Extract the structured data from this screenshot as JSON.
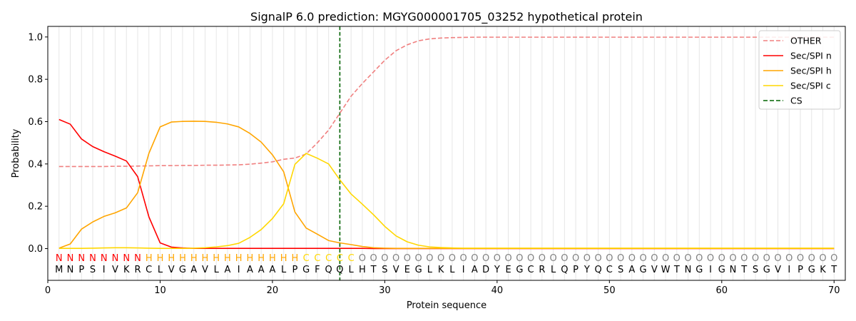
{
  "chart_data": {
    "type": "line",
    "title": "SignalP 6.0 prediction: MGYG000001705_03252 hypothetical protein",
    "xlabel": "Protein sequence",
    "ylabel": "Probability",
    "xlim": [
      0,
      71
    ],
    "ylim": [
      -0.15,
      1.05
    ],
    "x_ticks": [
      0,
      10,
      20,
      30,
      40,
      50,
      60,
      70
    ],
    "y_ticks": [
      0.0,
      0.2,
      0.4,
      0.6,
      0.8,
      1.0
    ],
    "x_tick_labels": [
      "0",
      "10",
      "20",
      "30",
      "40",
      "50",
      "60",
      "70"
    ],
    "y_tick_labels": [
      "0.0",
      "0.2",
      "0.4",
      "0.6",
      "0.8",
      "1.0"
    ],
    "grid": "vertical lines at each residue",
    "legend_position": "top-right",
    "sequence": "MNPSIVKRCLVGAVLAIAAALPGFQQLHTSVEGLKLIADYEGCRLQPYQCSAGVWTNGIGNTSGVIPGKT",
    "region_labels": "NNNNNNNNHHHHHHHHHHHHHHCCCCCOOOOOOOOOOOOOOOOOOOOOOOOOOOOOOOOOOOOOOOOOOOO",
    "region_colors": {
      "N": "#ff0000",
      "H": "#ffa500",
      "C": "#ffd700",
      "O": "#808080"
    },
    "cleavage_site": 26,
    "series": [
      {
        "name": "OTHER",
        "color": "#f08080",
        "style": "dashed",
        "values": [
          0.388,
          0.388,
          0.388,
          0.388,
          0.388,
          0.389,
          0.389,
          0.39,
          0.391,
          0.392,
          0.392,
          0.393,
          0.393,
          0.394,
          0.394,
          0.395,
          0.396,
          0.399,
          0.404,
          0.41,
          0.422,
          0.428,
          0.447,
          0.5,
          0.56,
          0.64,
          0.72,
          0.78,
          0.835,
          0.89,
          0.935,
          0.963,
          0.982,
          0.991,
          0.995,
          0.997,
          0.998,
          0.999,
          0.999,
          0.999,
          0.999,
          0.999,
          0.999,
          0.999,
          0.999,
          0.999,
          0.999,
          0.999,
          0.999,
          0.999,
          0.999,
          0.999,
          0.999,
          0.999,
          0.999,
          0.999,
          0.999,
          0.999,
          0.999,
          0.999,
          0.999,
          0.999,
          0.999,
          0.999,
          0.999,
          0.999,
          0.999,
          0.999,
          0.999,
          0.999
        ]
      },
      {
        "name": "Sec/SPI n",
        "color": "#ff0000",
        "style": "solid",
        "values": [
          0.61,
          0.588,
          0.518,
          0.482,
          0.458,
          0.437,
          0.414,
          0.34,
          0.15,
          0.027,
          0.007,
          0.003,
          0.001,
          0.001,
          0.001,
          0.001,
          0.001,
          0.001,
          0.001,
          0.001,
          0.001,
          0.001,
          0.001,
          0.001,
          0.001,
          0.001,
          0.001,
          0.001,
          0.0,
          0.0,
          0.0,
          0.0,
          0.0,
          0.0,
          0.0,
          0.0,
          0.0,
          0.0,
          0.0,
          0.0,
          0.0,
          0.0,
          0.0,
          0.0,
          0.0,
          0.0,
          0.0,
          0.0,
          0.0,
          0.0,
          0.0,
          0.0,
          0.0,
          0.0,
          0.0,
          0.0,
          0.0,
          0.0,
          0.0,
          0.0,
          0.0,
          0.0,
          0.0,
          0.0,
          0.0,
          0.0,
          0.0,
          0.0,
          0.0,
          0.0
        ]
      },
      {
        "name": "Sec/SPI h",
        "color": "#ffa500",
        "style": "solid",
        "values": [
          0.002,
          0.022,
          0.092,
          0.126,
          0.152,
          0.169,
          0.192,
          0.264,
          0.45,
          0.575,
          0.598,
          0.601,
          0.602,
          0.601,
          0.597,
          0.589,
          0.575,
          0.544,
          0.503,
          0.443,
          0.363,
          0.173,
          0.097,
          0.068,
          0.038,
          0.027,
          0.019,
          0.01,
          0.004,
          0.002,
          0.001,
          0.001,
          0.001,
          0.001,
          0.001,
          0.001,
          0.001,
          0.001,
          0.001,
          0.001,
          0.001,
          0.001,
          0.001,
          0.001,
          0.001,
          0.001,
          0.001,
          0.001,
          0.001,
          0.001,
          0.001,
          0.001,
          0.001,
          0.001,
          0.001,
          0.001,
          0.001,
          0.001,
          0.001,
          0.001,
          0.001,
          0.001,
          0.001,
          0.001,
          0.001,
          0.001,
          0.001,
          0.001,
          0.001,
          0.001
        ]
      },
      {
        "name": "Sec/SPI c",
        "color": "#ffd700",
        "style": "solid",
        "values": [
          0.001,
          0.001,
          0.001,
          0.002,
          0.003,
          0.004,
          0.004,
          0.003,
          0.002,
          0.001,
          0.001,
          0.001,
          0.002,
          0.004,
          0.008,
          0.014,
          0.025,
          0.053,
          0.09,
          0.142,
          0.212,
          0.398,
          0.45,
          0.427,
          0.4,
          0.325,
          0.258,
          0.21,
          0.16,
          0.105,
          0.06,
          0.032,
          0.016,
          0.008,
          0.005,
          0.003,
          0.002,
          0.002,
          0.002,
          0.002,
          0.002,
          0.002,
          0.002,
          0.002,
          0.002,
          0.002,
          0.002,
          0.002,
          0.002,
          0.002,
          0.002,
          0.002,
          0.002,
          0.002,
          0.002,
          0.002,
          0.002,
          0.002,
          0.002,
          0.002,
          0.002,
          0.002,
          0.002,
          0.002,
          0.002,
          0.002,
          0.002,
          0.002,
          0.002,
          0.002
        ]
      }
    ],
    "cs_series": {
      "name": "CS",
      "color": "#006400",
      "style": "dashed"
    }
  }
}
